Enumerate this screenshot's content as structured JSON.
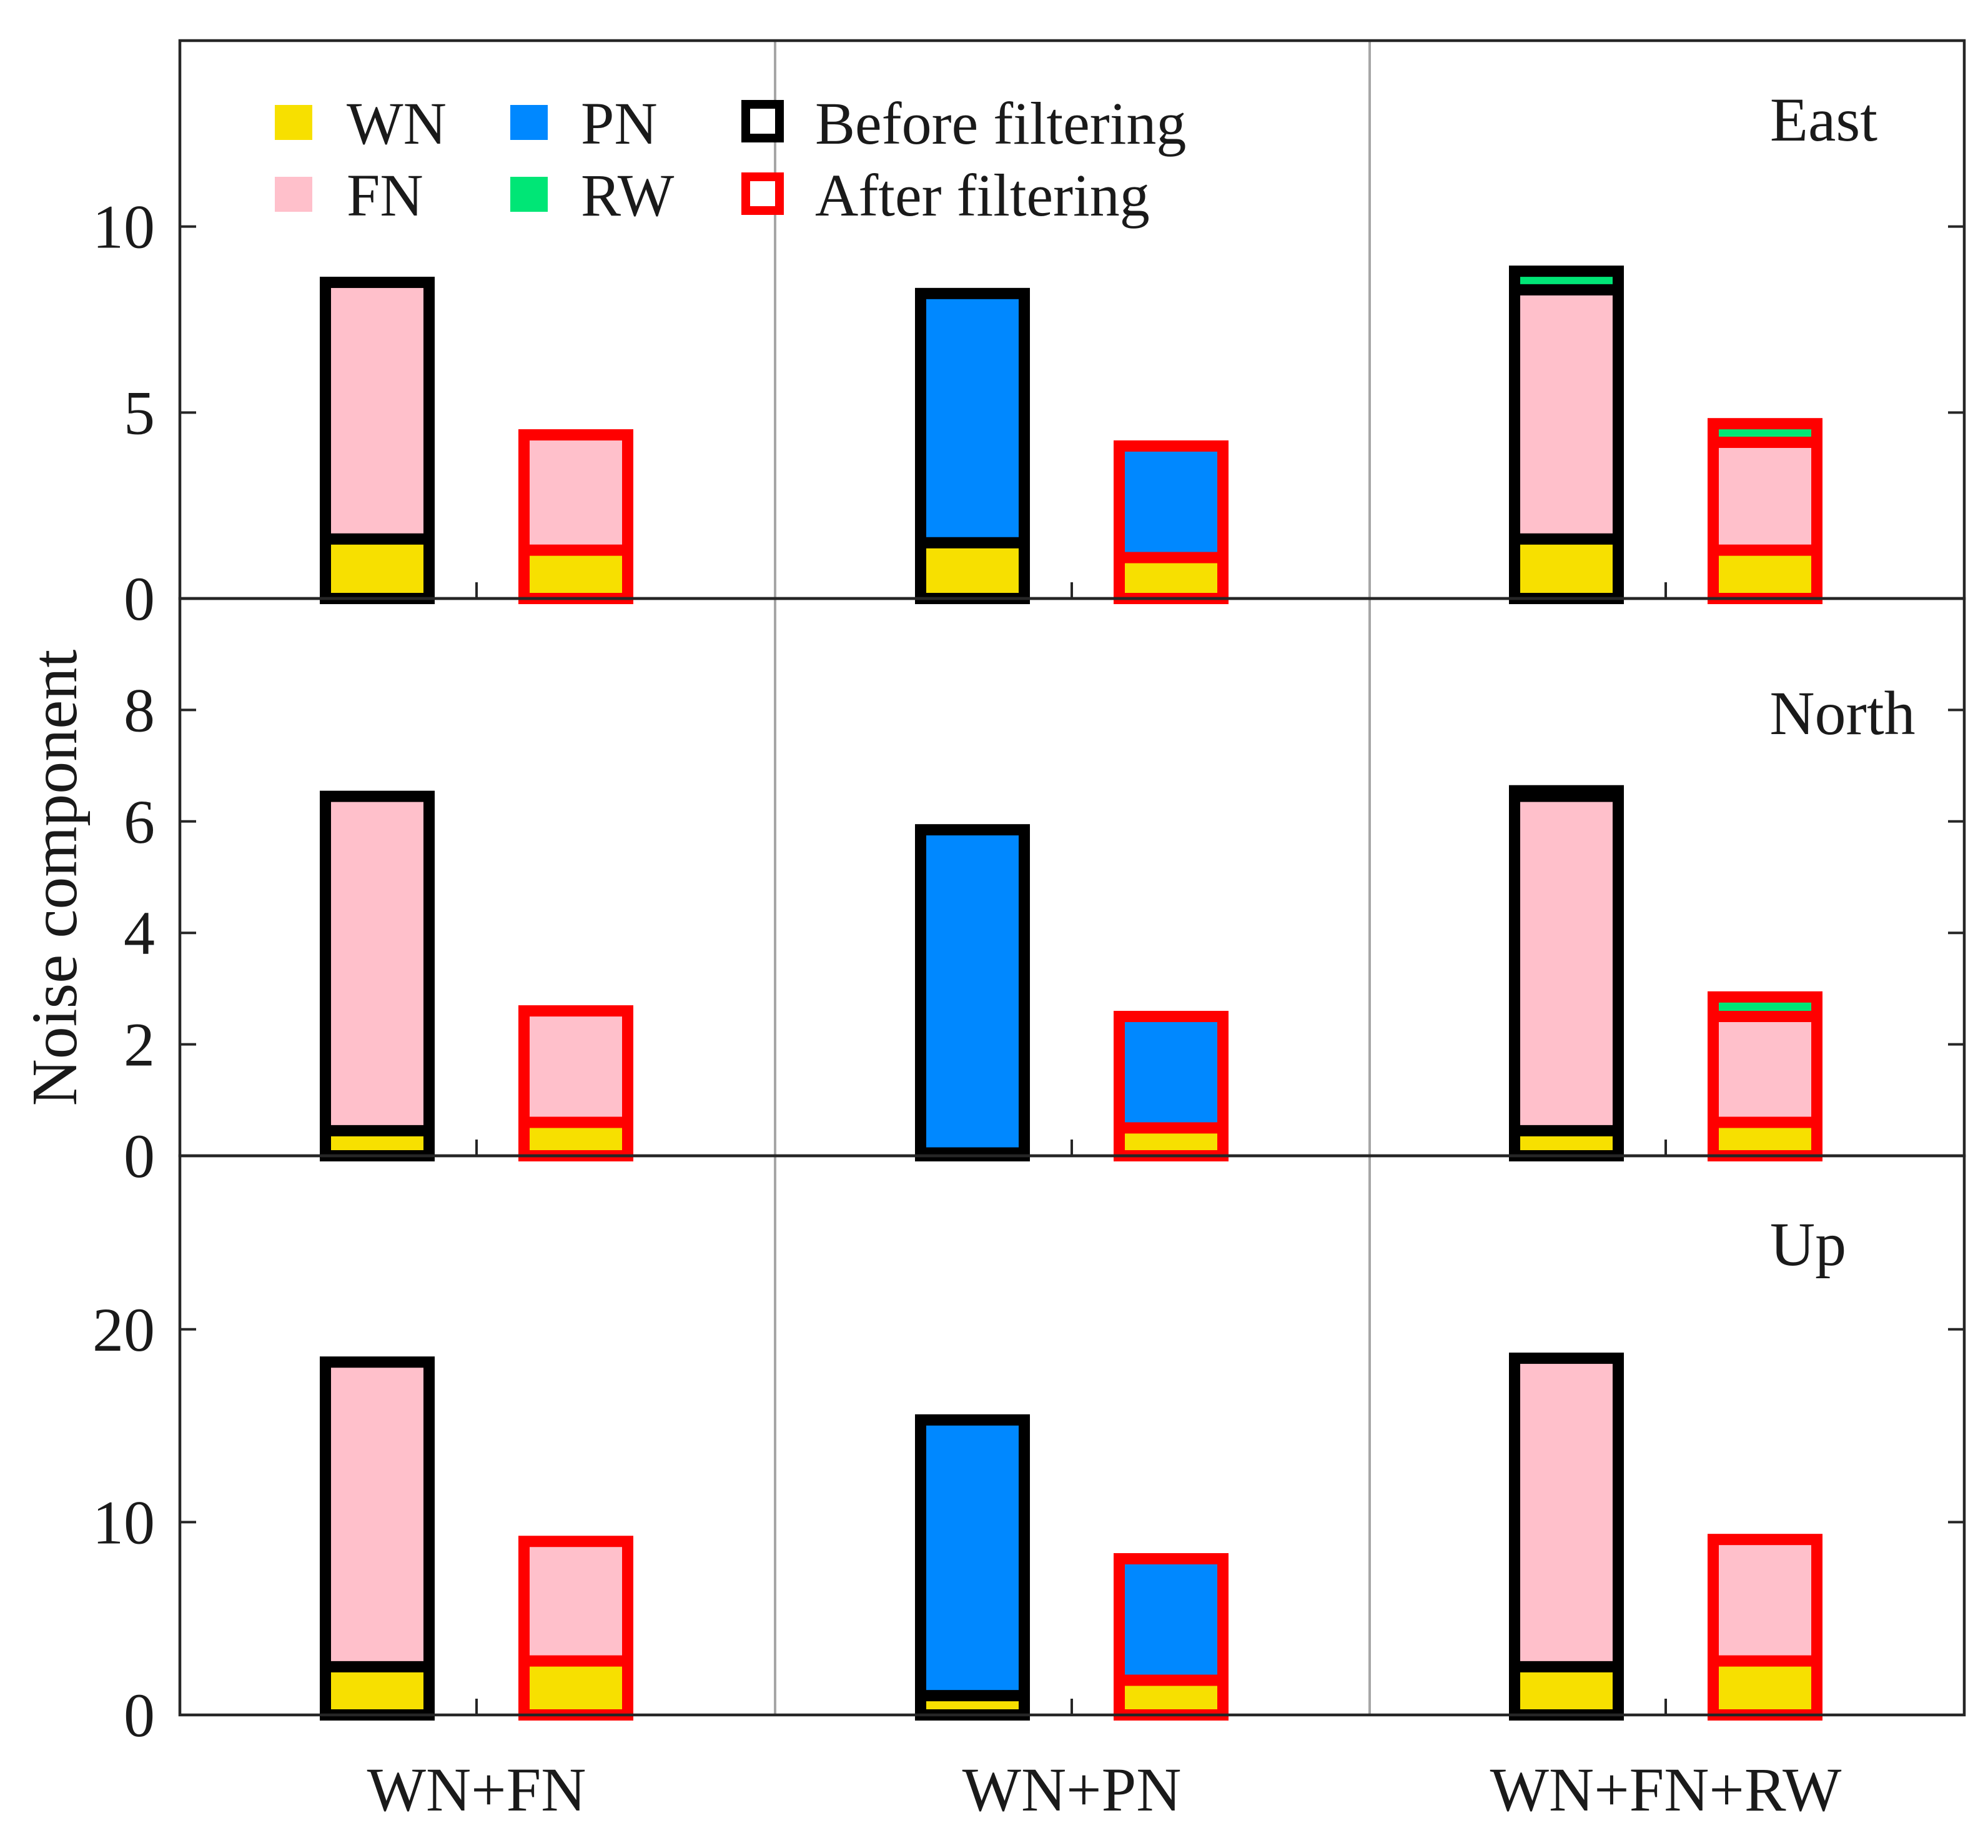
{
  "chart_data": {
    "type": "bar",
    "subtype": "stacked-grouped",
    "ylabel": "Noise component",
    "categories": [
      "WN+FN",
      "WN+PN",
      "WN+FN+RW"
    ],
    "stack_order": [
      "WN",
      "FN",
      "PN",
      "RW"
    ],
    "legend": {
      "placement": "top-left",
      "components": [
        {
          "key": "WN",
          "label": "WN",
          "color": "#f7e000"
        },
        {
          "key": "FN",
          "label": "FN",
          "color": "#ffc0cb"
        },
        {
          "key": "PN",
          "label": "PN",
          "color": "#0088ff"
        },
        {
          "key": "RW",
          "label": "RW",
          "color": "#00e676"
        }
      ],
      "states": [
        {
          "key": "before",
          "label": "Before filtering",
          "color": "#000000"
        },
        {
          "key": "after",
          "label": "After filtering",
          "color": "#ff0000"
        }
      ]
    },
    "panels": [
      {
        "title": "East",
        "ylim": [
          0,
          15
        ],
        "yticks": [
          0,
          5,
          10
        ],
        "series": [
          {
            "name": "Before filtering",
            "stacks": [
              {
                "WN": 1.6,
                "FN": 6.9,
                "PN": 0,
                "RW": 0
              },
              {
                "WN": 1.5,
                "FN": 0,
                "PN": 6.7,
                "RW": 0
              },
              {
                "WN": 1.6,
                "FN": 6.7,
                "PN": 0,
                "RW": 0.5
              }
            ]
          },
          {
            "name": "After filtering",
            "stacks": [
              {
                "WN": 1.3,
                "FN": 3.1,
                "PN": 0,
                "RW": 0
              },
              {
                "WN": 1.1,
                "FN": 0,
                "PN": 3.0,
                "RW": 0
              },
              {
                "WN": 1.3,
                "FN": 2.9,
                "PN": 0,
                "RW": 0.5
              }
            ]
          }
        ]
      },
      {
        "title": "North",
        "ylim": [
          0,
          10
        ],
        "yticks": [
          0,
          2,
          4,
          6,
          8
        ],
        "series": [
          {
            "name": "Before filtering",
            "stacks": [
              {
                "WN": 0.45,
                "FN": 6.0,
                "PN": 0,
                "RW": 0
              },
              {
                "WN": 0.05,
                "FN": 0,
                "PN": 5.8,
                "RW": 0
              },
              {
                "WN": 0.45,
                "FN": 6.0,
                "PN": 0,
                "RW": 0.1
              }
            ]
          },
          {
            "name": "After filtering",
            "stacks": [
              {
                "WN": 0.6,
                "FN": 2.0,
                "PN": 0,
                "RW": 0
              },
              {
                "WN": 0.5,
                "FN": 0,
                "PN": 2.0,
                "RW": 0
              },
              {
                "WN": 0.6,
                "FN": 1.9,
                "PN": 0,
                "RW": 0.35
              }
            ]
          }
        ]
      },
      {
        "title": "Up",
        "ylim": [
          0,
          29
        ],
        "yticks": [
          0,
          10,
          20
        ],
        "series": [
          {
            "name": "Before filtering",
            "stacks": [
              {
                "WN": 2.5,
                "FN": 15.8,
                "PN": 0,
                "RW": 0
              },
              {
                "WN": 1.0,
                "FN": 0,
                "PN": 14.3,
                "RW": 0
              },
              {
                "WN": 2.5,
                "FN": 16.0,
                "PN": 0,
                "RW": 0
              }
            ]
          },
          {
            "name": "After filtering",
            "stacks": [
              {
                "WN": 2.8,
                "FN": 6.2,
                "PN": 0,
                "RW": 0
              },
              {
                "WN": 1.8,
                "FN": 0,
                "PN": 6.3,
                "RW": 0
              },
              {
                "WN": 2.8,
                "FN": 6.3,
                "PN": 0,
                "RW": 0
              }
            ]
          }
        ]
      }
    ]
  }
}
